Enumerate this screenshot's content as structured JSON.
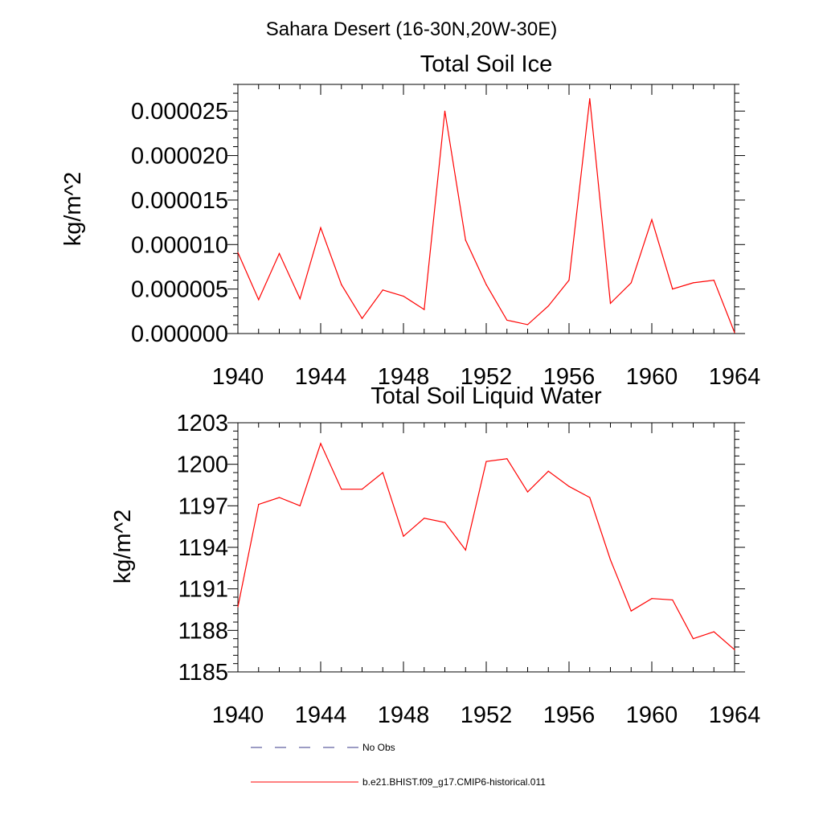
{
  "figure": {
    "title": "Sahara Desert (16-30N,20W-30E)"
  },
  "chart_data": [
    {
      "type": "line",
      "title": "Total Soil Ice",
      "xlabel": "",
      "ylabel": "kg/m^2",
      "xlim": [
        1940,
        1964
      ],
      "ylim": [
        0.0,
        2.8e-05
      ],
      "x_ticks": [
        "1940",
        "1944",
        "1948",
        "1952",
        "1956",
        "1960",
        "1964"
      ],
      "y_ticks": [
        "0.000000",
        "0.000005",
        "0.000010",
        "0.000015",
        "0.000020",
        "0.000025"
      ],
      "y_tick_values": [
        0.0,
        5e-06,
        1e-05,
        1.5e-05,
        2e-05,
        2.5e-05
      ],
      "series": [
        {
          "color": "#ff0000",
          "x": [
            1940,
            1941,
            1942,
            1943,
            1944,
            1945,
            1946,
            1947,
            1948,
            1949,
            1950,
            1951,
            1952,
            1953,
            1954,
            1955,
            1956,
            1957,
            1958,
            1959,
            1960,
            1961,
            1962,
            1963,
            1964
          ],
          "values": [
            9.1e-06,
            3.8e-06,
            9e-06,
            3.9e-06,
            1.19e-05,
            5.5e-06,
            1.7e-06,
            4.9e-06,
            4.2e-06,
            2.7e-06,
            2.5e-05,
            1.05e-05,
            5.5e-06,
            1.5e-06,
            1e-06,
            3.1e-06,
            6e-06,
            2.64e-05,
            3.4e-06,
            5.7e-06,
            1.28e-05,
            5e-06,
            5.7e-06,
            6e-06,
            1e-07
          ]
        }
      ]
    },
    {
      "type": "line",
      "title": "Total Soil Liquid Water",
      "xlabel": "",
      "ylabel": "kg/m^2",
      "xlim": [
        1940,
        1964
      ],
      "ylim": [
        1185,
        1203
      ],
      "x_ticks": [
        "1940",
        "1944",
        "1948",
        "1952",
        "1956",
        "1960",
        "1964"
      ],
      "y_ticks": [
        "1185",
        "1188",
        "1191",
        "1194",
        "1197",
        "1200",
        "1203"
      ],
      "y_tick_values": [
        1185,
        1188,
        1191,
        1194,
        1197,
        1200,
        1203
      ],
      "series": [
        {
          "color": "#ff0000",
          "x": [
            1940,
            1941,
            1942,
            1943,
            1944,
            1945,
            1946,
            1947,
            1948,
            1949,
            1950,
            1951,
            1952,
            1953,
            1954,
            1955,
            1956,
            1957,
            1958,
            1959,
            1960,
            1961,
            1962,
            1963,
            1964
          ],
          "values": [
            1189.7,
            1197.1,
            1197.6,
            1197.0,
            1201.5,
            1198.2,
            1198.2,
            1199.4,
            1194.8,
            1196.1,
            1195.8,
            1193.8,
            1200.2,
            1200.4,
            1198.0,
            1199.5,
            1198.4,
            1197.6,
            1193.1,
            1189.4,
            1190.3,
            1190.2,
            1187.4,
            1187.9,
            1186.6
          ]
        }
      ]
    }
  ],
  "legend": {
    "items": [
      {
        "label": "No Obs",
        "color": "#3a3a8a",
        "style": "dashed"
      },
      {
        "label": "b.e21.BHIST.f09_g17.CMIP6-historical.011",
        "color": "#ff0000",
        "style": "solid"
      }
    ]
  }
}
